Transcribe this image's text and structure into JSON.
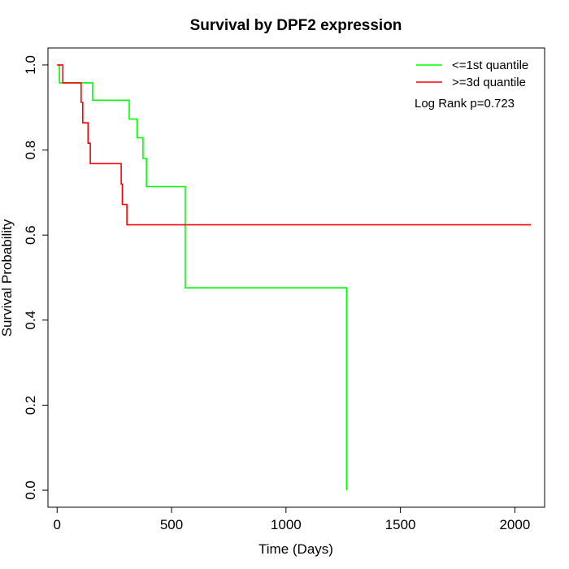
{
  "chart_data": {
    "type": "line",
    "title": "Survival by DPF2 expression",
    "xlabel": "Time (Days)",
    "ylabel": "Survival Probability",
    "xlim": [
      -40,
      2130
    ],
    "ylim": [
      -0.04,
      1.04
    ],
    "x_ticks": [
      0,
      500,
      1000,
      1500,
      2000
    ],
    "x_tick_labels": [
      "0",
      "500",
      "1000",
      "1500",
      "2000"
    ],
    "y_ticks": [
      0.0,
      0.2,
      0.4,
      0.6,
      0.8,
      1.0
    ],
    "y_tick_labels": [
      "0.0",
      "0.2",
      "0.4",
      "0.6",
      "0.8",
      "1.0"
    ],
    "grid": false,
    "legend_position": "top-right",
    "annotation": "Log Rank p=0.723",
    "series": [
      {
        "name": "<=1st quantile",
        "color": "#00ff00",
        "steps": [
          [
            0,
            1.0
          ],
          [
            10,
            0.958
          ],
          [
            155,
            0.917
          ],
          [
            315,
            0.873
          ],
          [
            350,
            0.829
          ],
          [
            375,
            0.78
          ],
          [
            390,
            0.714
          ],
          [
            555,
            0.714
          ],
          [
            560,
            0.476
          ],
          [
            1265,
            0.476
          ],
          [
            1265,
            0.0
          ]
        ]
      },
      {
        "name": ">=3d quantile",
        "color": "#ff0000",
        "steps": [
          [
            0,
            1.0
          ],
          [
            25,
            0.958
          ],
          [
            105,
            0.912
          ],
          [
            112,
            0.864
          ],
          [
            135,
            0.816
          ],
          [
            145,
            0.768
          ],
          [
            280,
            0.72
          ],
          [
            285,
            0.672
          ],
          [
            305,
            0.624
          ],
          [
            2070,
            0.624
          ]
        ]
      }
    ]
  }
}
